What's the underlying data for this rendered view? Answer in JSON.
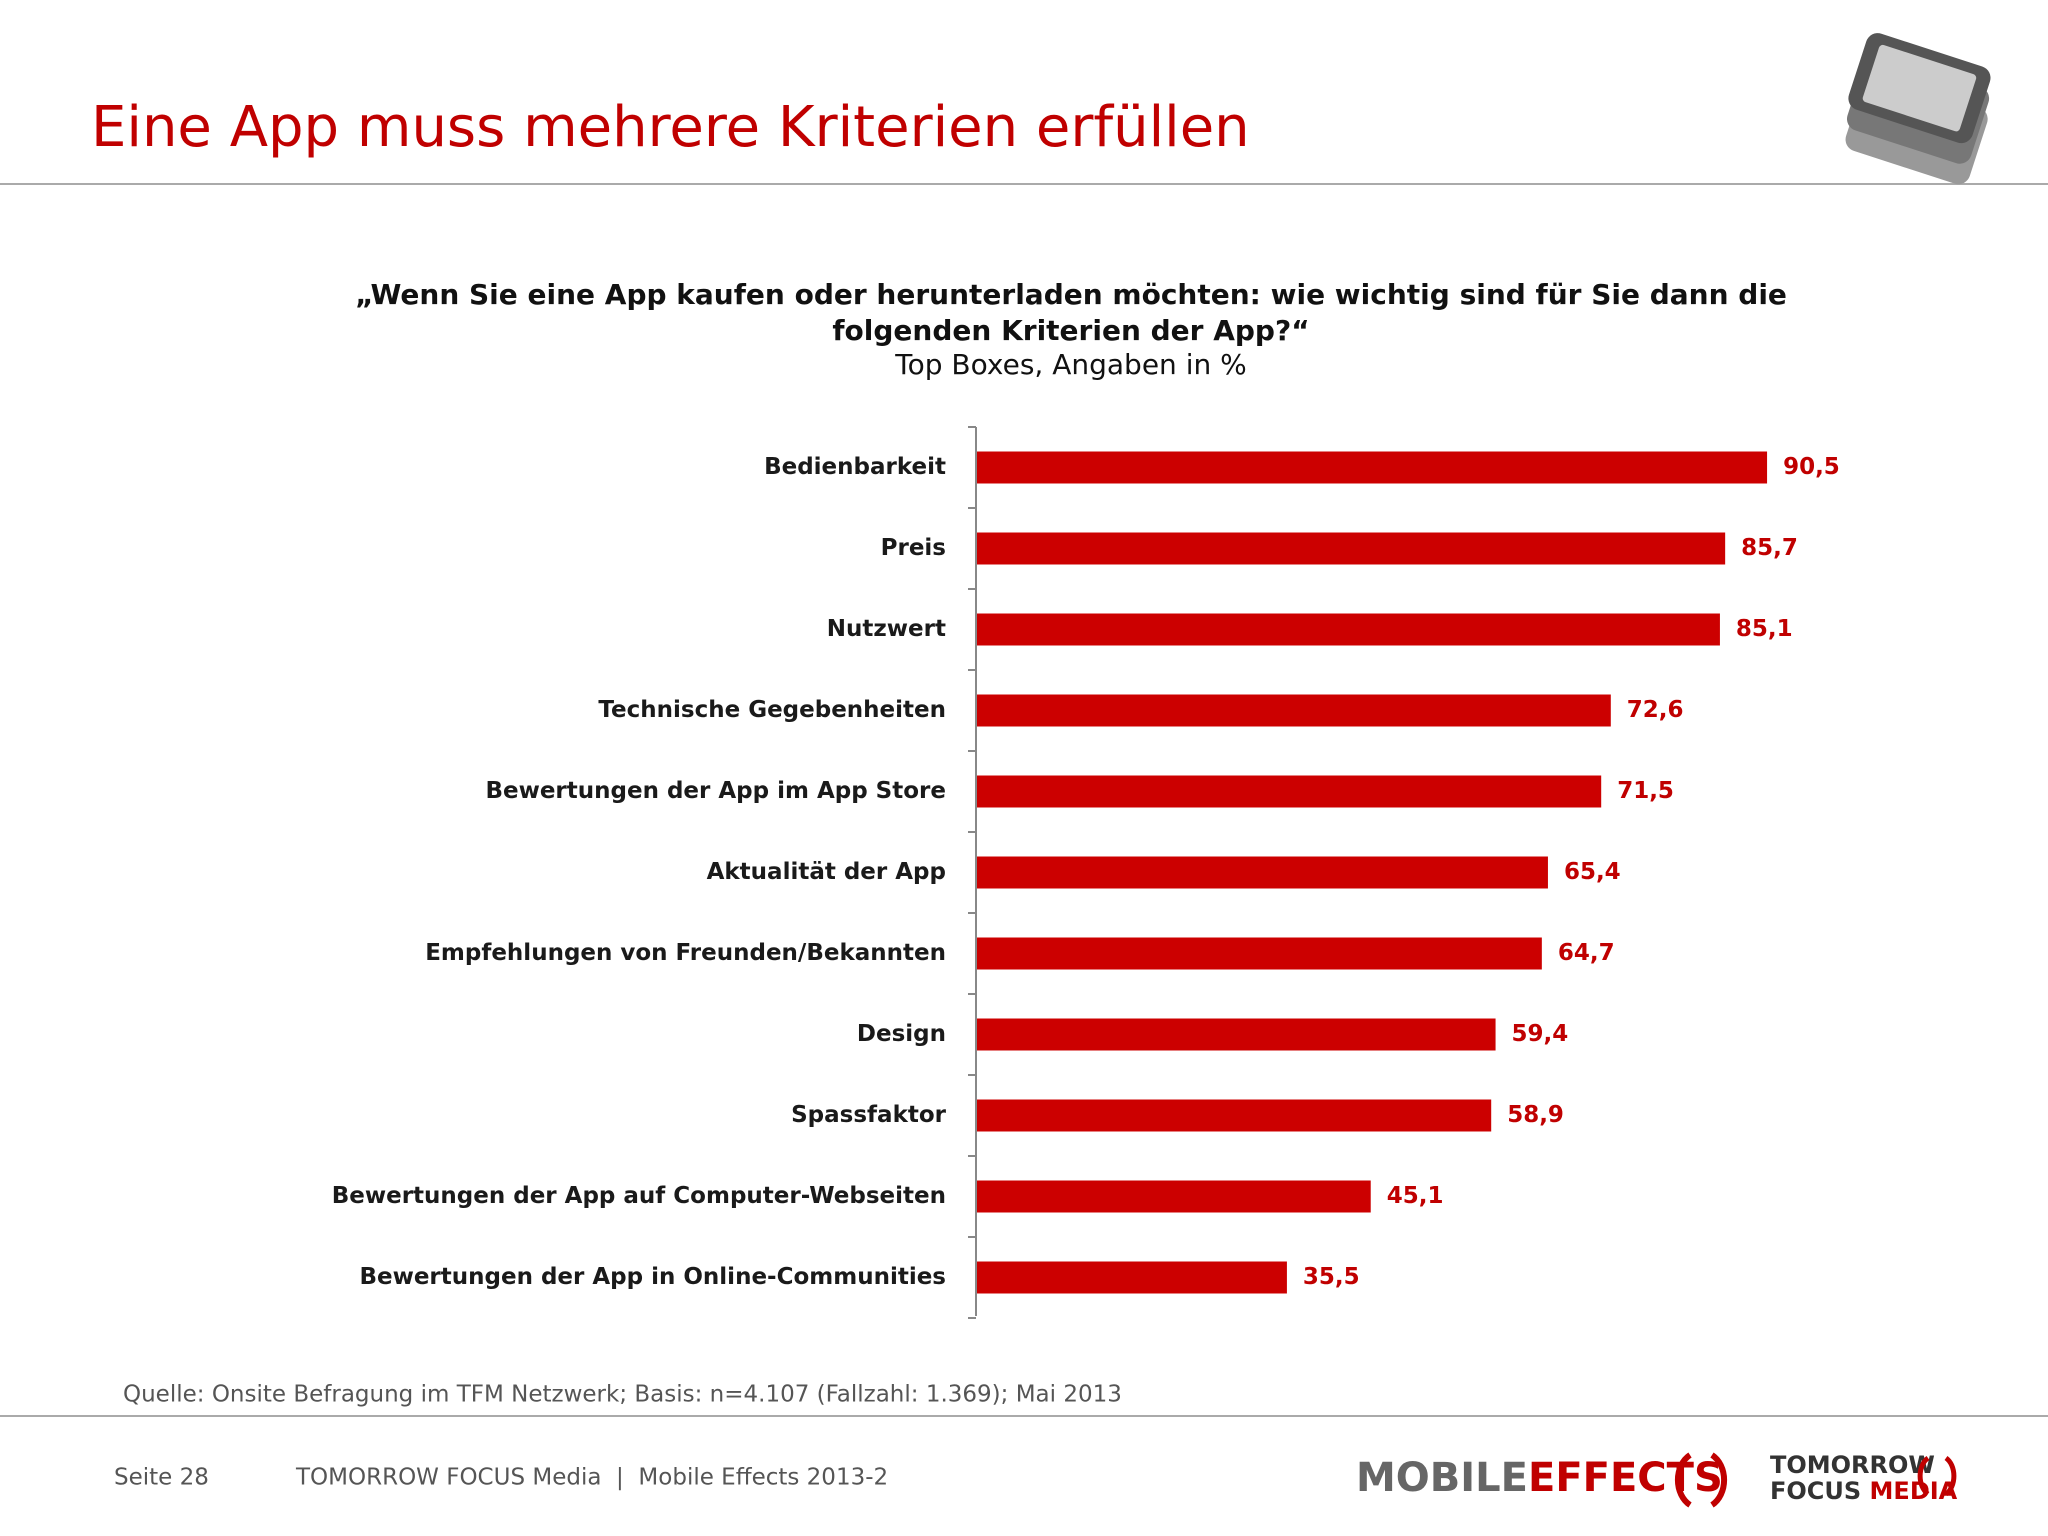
{
  "header": {
    "title": "Eine App muss mehrere Kriterien erfüllen"
  },
  "chart_data": {
    "type": "bar",
    "orientation": "horizontal",
    "title": [
      "„Wenn Sie eine App kaufen oder herunterladen möchten: wie wichtig sind für Sie dann die",
      "folgenden Kriterien der App?“"
    ],
    "subtitle": "Top Boxes, Angaben in %",
    "categories": [
      "Bedienbarkeit",
      "Preis",
      "Nutzwert",
      "Technische Gegebenheiten",
      "Bewertungen der App im App Store",
      "Aktualität der App",
      "Empfehlungen von Freunden/Bekannten",
      "Design",
      "Spassfaktor",
      "Bewertungen der App auf Computer-Webseiten",
      "Bewertungen der App in Online-Communities"
    ],
    "values": [
      90.5,
      85.7,
      85.1,
      72.6,
      71.5,
      65.4,
      64.7,
      59.4,
      58.9,
      45.1,
      35.5
    ],
    "value_labels": [
      "90,5",
      "85,7",
      "85,1",
      "72,6",
      "71,5",
      "65,4",
      "64,7",
      "59,4",
      "58,9",
      "45,1",
      "35,5"
    ],
    "color": "#cc0000"
  },
  "source": "Quelle: Onsite Befragung im TFM Netzwerk; Basis: n=4.107 (Fallzahl: 1.369); Mai 2013",
  "footer": {
    "page": "Seite 28",
    "text": "TOMORROW FOCUS Media  |  Mobile Effects 2013-2",
    "logo_mobile": "MOBILE",
    "logo_effects": "EFFECTS",
    "logo_tomorrow": "TOMORROW",
    "logo_focus": "FOCUS",
    "logo_media": "MEDIA"
  }
}
